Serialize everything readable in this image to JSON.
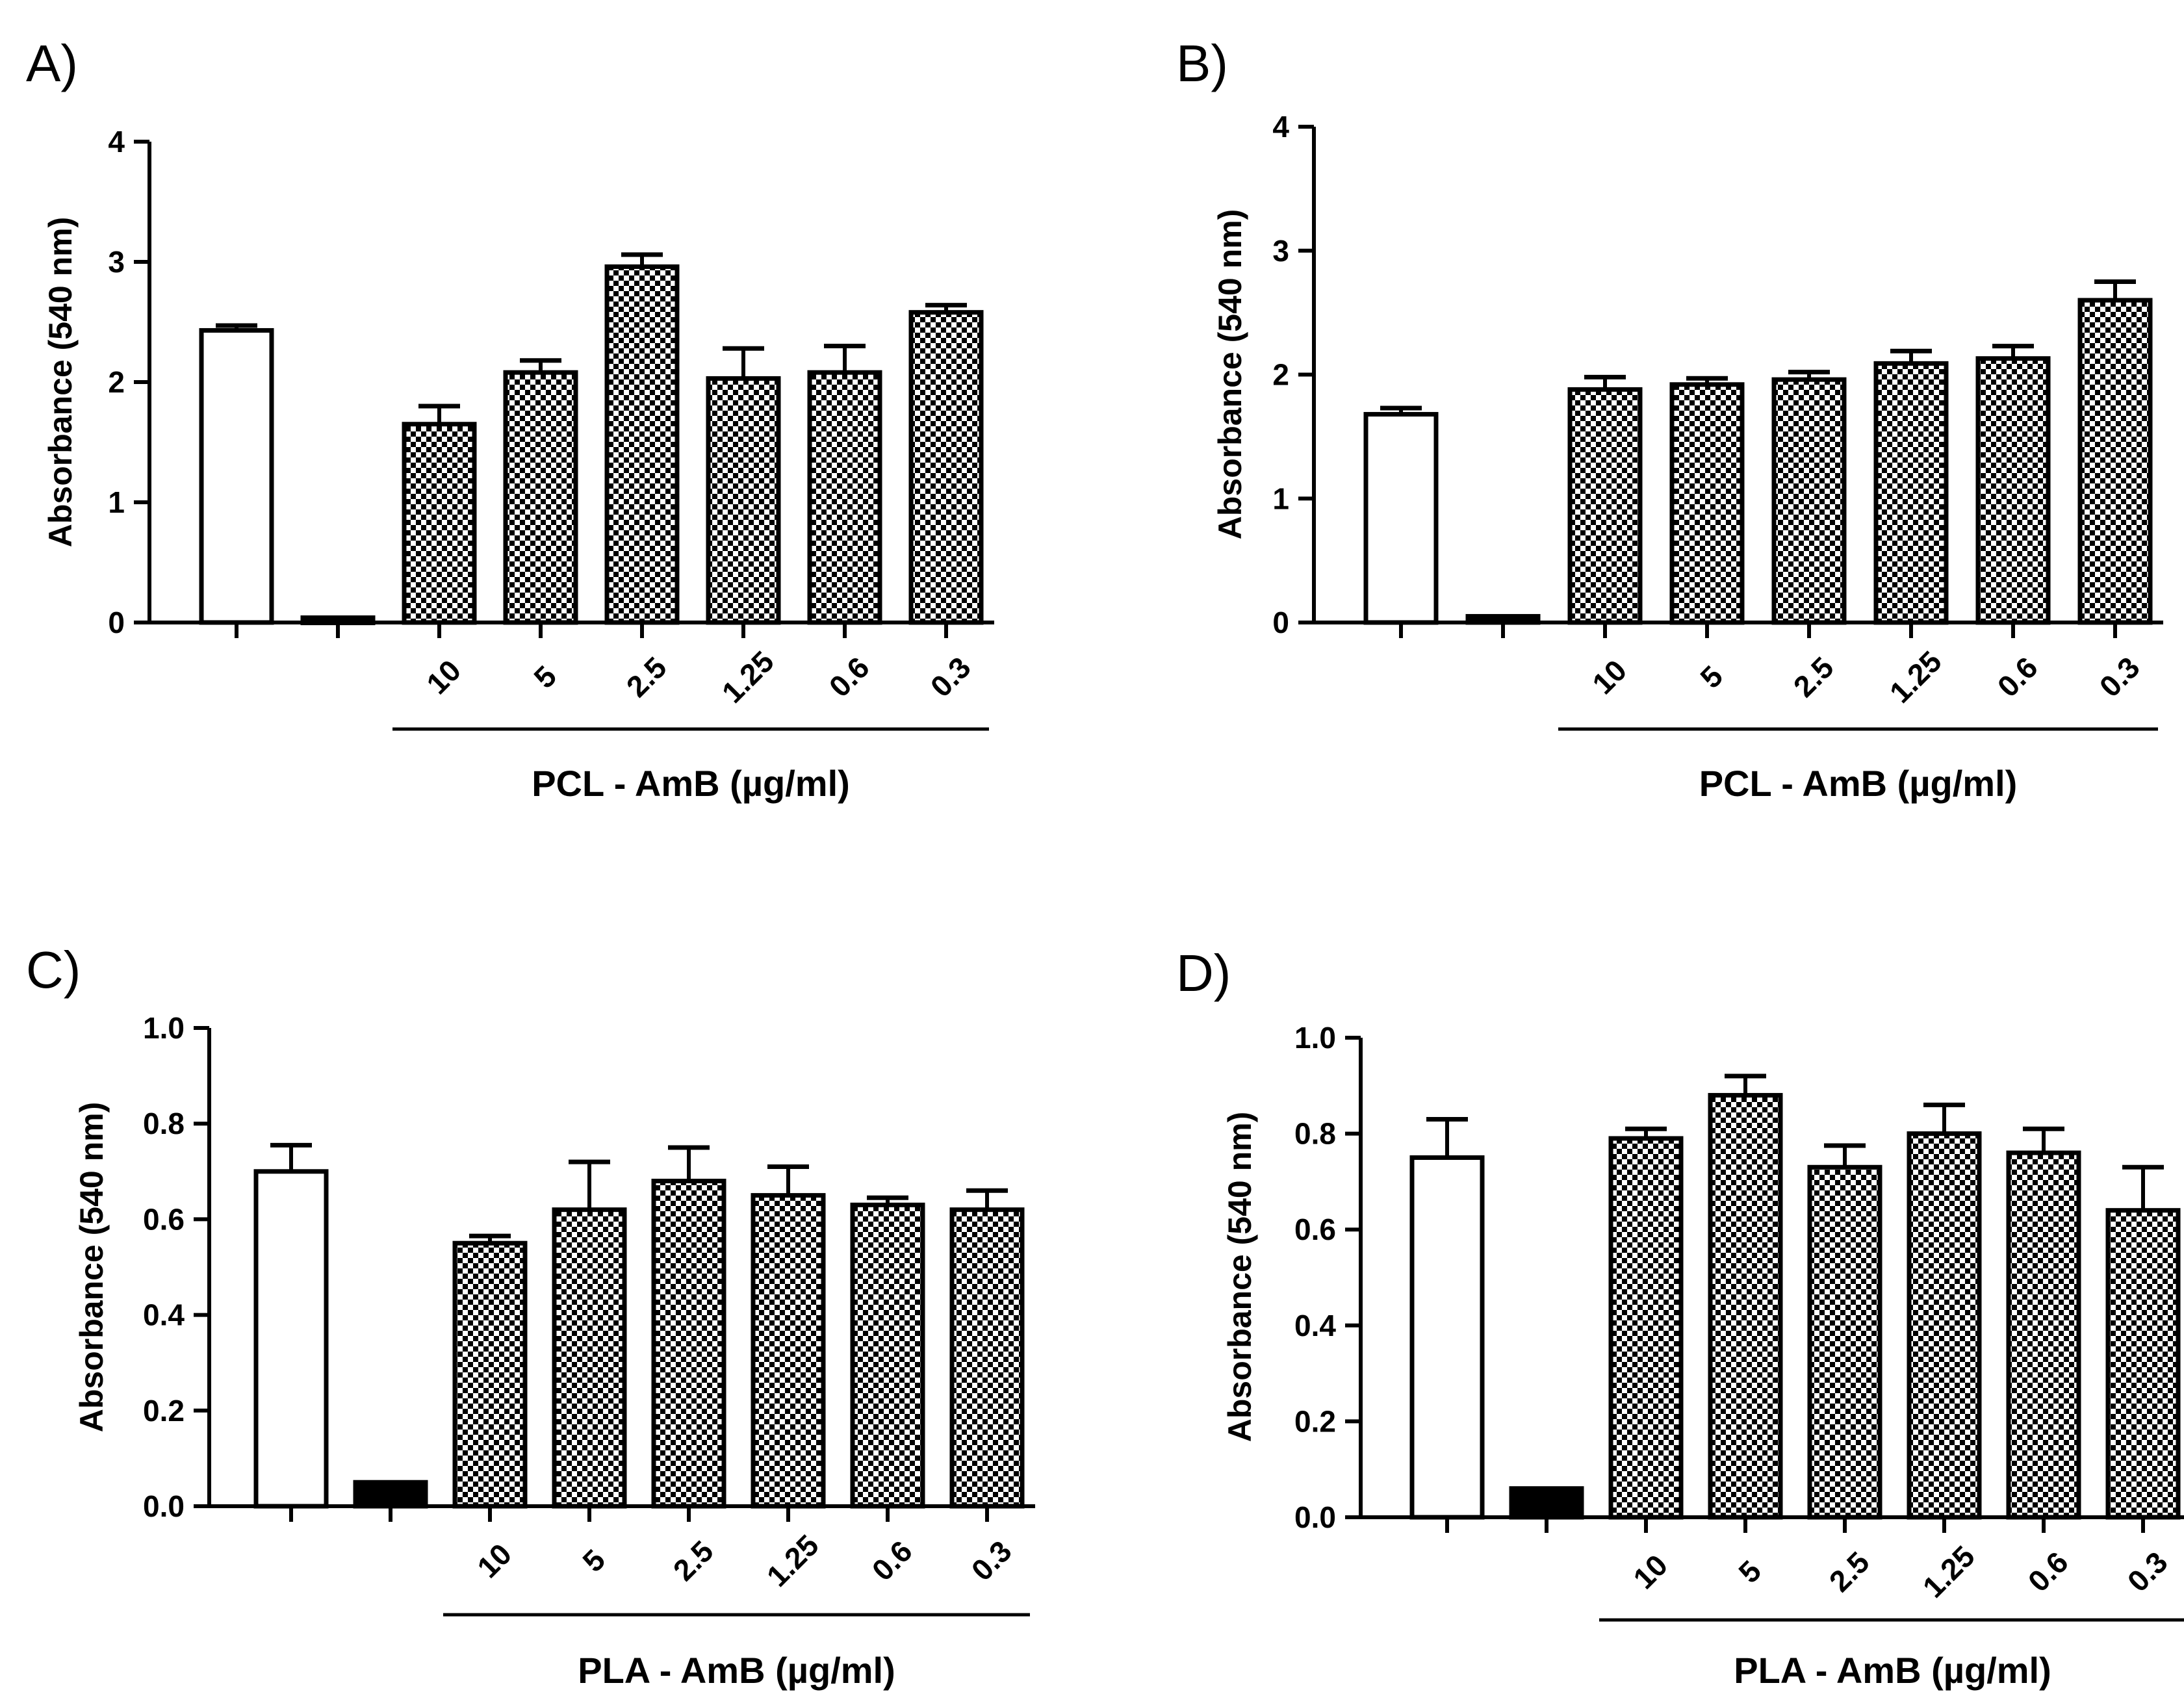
{
  "chart_data": [
    {
      "panel": "A)",
      "type": "bar",
      "ylabel": "Absorbance (540 nm)",
      "xlabel": "PCL - AmB (µg/ml)",
      "ylim": [
        0,
        4
      ],
      "yticks": [
        "0",
        "1",
        "2",
        "3",
        "4"
      ],
      "categories": [
        "",
        "",
        "10",
        "5",
        "2.5",
        "1.25",
        "0.6",
        "0.3"
      ],
      "values": [
        2.43,
        0.04,
        1.65,
        2.08,
        2.96,
        2.03,
        2.08,
        2.58
      ],
      "errors": [
        0.04,
        0.0,
        0.15,
        0.1,
        0.1,
        0.25,
        0.22,
        0.06
      ],
      "fills": [
        "white",
        "black",
        "check",
        "check",
        "check",
        "check",
        "check",
        "check"
      ]
    },
    {
      "panel": "B)",
      "type": "bar",
      "ylabel": "Absorbance (540 nm)",
      "xlabel": "PCL - AmB (µg/ml)",
      "ylim": [
        0,
        4
      ],
      "yticks": [
        "0",
        "1",
        "2",
        "3",
        "4"
      ],
      "categories": [
        "",
        "",
        "10",
        "5",
        "2.5",
        "1.25",
        "0.6",
        "0.3"
      ],
      "values": [
        1.68,
        0.05,
        1.88,
        1.92,
        1.96,
        2.09,
        2.13,
        2.6
      ],
      "errors": [
        0.05,
        0.0,
        0.1,
        0.05,
        0.06,
        0.1,
        0.1,
        0.15
      ],
      "fills": [
        "white",
        "black",
        "check",
        "check",
        "check",
        "check",
        "check",
        "check"
      ]
    },
    {
      "panel": "C)",
      "type": "bar",
      "ylabel": "Absorbance (540 nm)",
      "xlabel": "PLA - AmB (µg/ml)",
      "ylim": [
        0,
        1.0
      ],
      "yticks": [
        "0.0",
        "0.2",
        "0.4",
        "0.6",
        "0.8",
        "1.0"
      ],
      "categories": [
        "",
        "",
        "10",
        "5",
        "2.5",
        "1.25",
        "0.6",
        "0.3"
      ],
      "values": [
        0.7,
        0.05,
        0.55,
        0.62,
        0.68,
        0.65,
        0.63,
        0.62
      ],
      "errors": [
        0.055,
        0.0,
        0.015,
        0.1,
        0.07,
        0.06,
        0.015,
        0.04
      ],
      "fills": [
        "white",
        "black",
        "check",
        "check",
        "check",
        "check",
        "check",
        "check"
      ]
    },
    {
      "panel": "D)",
      "type": "bar",
      "ylabel": "Absorbance (540 nm)",
      "xlabel": "PLA - AmB (µg/ml)",
      "ylim": [
        0,
        1.0
      ],
      "yticks": [
        "0.0",
        "0.2",
        "0.4",
        "0.6",
        "0.8",
        "1.0"
      ],
      "categories": [
        "",
        "",
        "10",
        "5",
        "2.5",
        "1.25",
        "0.6",
        "0.3"
      ],
      "values": [
        0.75,
        0.06,
        0.79,
        0.88,
        0.73,
        0.8,
        0.76,
        0.64
      ],
      "errors": [
        0.08,
        0.0,
        0.02,
        0.04,
        0.045,
        0.06,
        0.05,
        0.09
      ],
      "fills": [
        "white",
        "black",
        "check",
        "check",
        "check",
        "check",
        "check",
        "check"
      ]
    }
  ]
}
